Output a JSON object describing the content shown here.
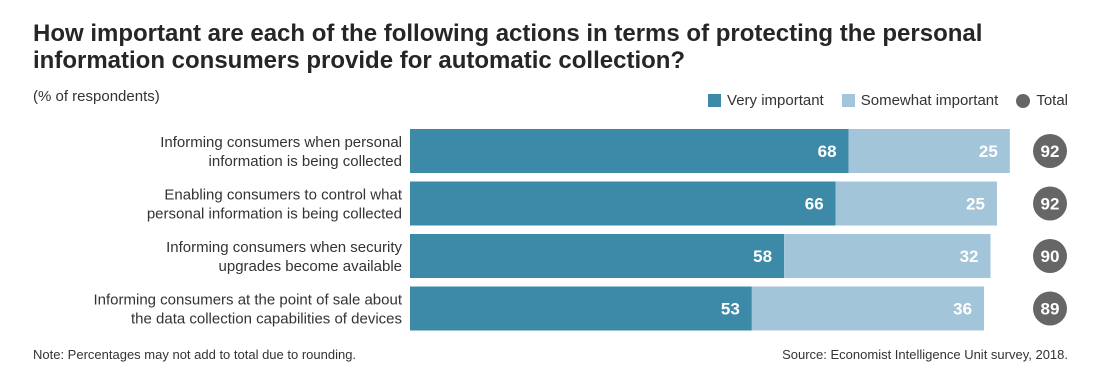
{
  "title": "How important are each of the following actions in terms of protecting the personal information consumers provide for automatic collection?",
  "subtitle": "(% of respondents)",
  "legend": {
    "very": "Very important",
    "somewhat": "Somewhat important",
    "total": "Total"
  },
  "colors": {
    "very": "#3c89a8",
    "somewhat": "#a3c5d9",
    "total": "#666666"
  },
  "note": "Note: Percentages may not add to total due to rounding.",
  "source": "Source: Economist Intelligence Unit survey, 2018.",
  "chart_data": {
    "type": "bar",
    "orientation": "horizontal",
    "stacked": true,
    "categories": [
      [
        "Informing consumers when personal",
        "information is being collected"
      ],
      [
        "Enabling consumers to control what",
        "personal information is being collected"
      ],
      [
        "Informing consumers when security",
        "upgrades become available"
      ],
      [
        "Informing consumers at the point of sale about",
        "the data collection capabilities of devices"
      ]
    ],
    "series": [
      {
        "name": "Very important",
        "values": [
          68,
          66,
          58,
          53
        ]
      },
      {
        "name": "Somewhat important",
        "values": [
          25,
          25,
          32,
          36
        ]
      }
    ],
    "totals": [
      92,
      92,
      90,
      89
    ],
    "xlim": [
      0,
      100
    ],
    "grid": false,
    "legend_position": "top-right"
  }
}
